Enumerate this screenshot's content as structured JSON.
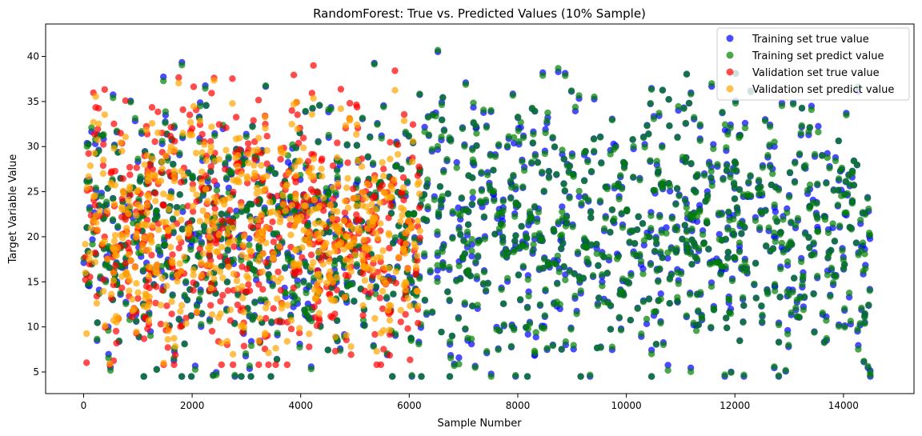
{
  "chart_data": {
    "type": "scatter",
    "title": "RandomForest: True vs. Predicted Values (10% Sample)",
    "xlabel": "Sample Number",
    "ylabel": "Target Variable Value",
    "xlim": [
      -700,
      15300
    ],
    "ylim": [
      2.6,
      43.6
    ],
    "xticks": [
      0,
      2000,
      4000,
      6000,
      8000,
      10000,
      12000,
      14000
    ],
    "yticks": [
      5,
      10,
      15,
      20,
      25,
      30,
      35,
      40
    ],
    "grid": false,
    "legend_position": "top-right",
    "marker_alpha": 0.7,
    "series": [
      {
        "name": "Training set true value",
        "color": "#0000ff",
        "x_range": [
          0,
          14500
        ],
        "count": 1450,
        "y_range": [
          4.5,
          42
        ],
        "y_center": 20.5,
        "note": "approx. 10% sample of ~14500 training rows"
      },
      {
        "name": "Training set predict value",
        "color": "#008000",
        "x_range": [
          0,
          14500
        ],
        "count": 1450,
        "y_range": [
          4.5,
          41.5
        ],
        "note": "nearly coincides with training true values"
      },
      {
        "name": "Validation set true value",
        "color": "#ff0000",
        "x_range": [
          0,
          6200
        ],
        "count": 620,
        "y_range": [
          5.8,
          41.5
        ],
        "y_center": 20.5
      },
      {
        "name": "Validation set predict value",
        "color": "#ffa500",
        "x_range": [
          0,
          6200
        ],
        "count": 620,
        "y_range": [
          5.8,
          40
        ],
        "note": "predictions pulled toward the mean relative to validation true values"
      }
    ]
  }
}
